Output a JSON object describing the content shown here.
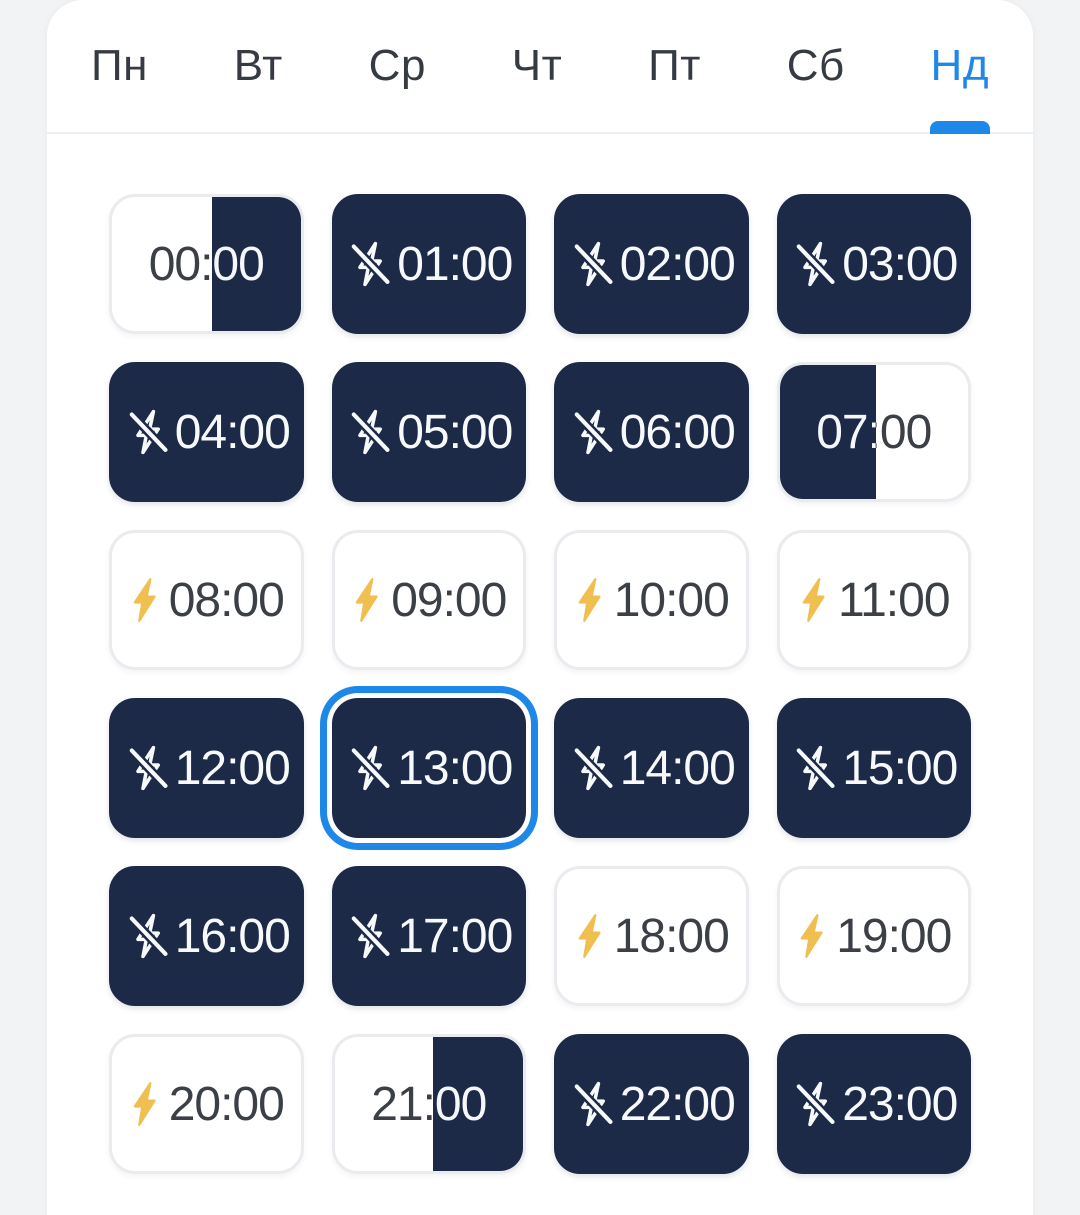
{
  "day_tabs": {
    "items": [
      {
        "label": "Пн",
        "active": false
      },
      {
        "label": "Вт",
        "active": false
      },
      {
        "label": "Ср",
        "active": false
      },
      {
        "label": "Чт",
        "active": false
      },
      {
        "label": "Пт",
        "active": false
      },
      {
        "label": "Сб",
        "active": false
      },
      {
        "label": "Нд",
        "active": true
      }
    ]
  },
  "schedule": {
    "selected_slot": "13:00",
    "slots": [
      {
        "time": "00:00",
        "state": "half",
        "dark_side": "right",
        "split_pct": 53,
        "icon": "none",
        "selected": false
      },
      {
        "time": "01:00",
        "state": "off",
        "icon": "flash-off",
        "selected": false
      },
      {
        "time": "02:00",
        "state": "off",
        "icon": "flash-off",
        "selected": false
      },
      {
        "time": "03:00",
        "state": "off",
        "icon": "flash-off",
        "selected": false
      },
      {
        "time": "04:00",
        "state": "off",
        "icon": "flash-off",
        "selected": false
      },
      {
        "time": "05:00",
        "state": "off",
        "icon": "flash-off",
        "selected": false
      },
      {
        "time": "06:00",
        "state": "off",
        "icon": "flash-off",
        "selected": false
      },
      {
        "time": "07:00",
        "state": "half",
        "dark_side": "left",
        "split_pct": 51,
        "icon": "none",
        "selected": false
      },
      {
        "time": "08:00",
        "state": "on",
        "icon": "flash",
        "selected": false
      },
      {
        "time": "09:00",
        "state": "on",
        "icon": "flash",
        "selected": false
      },
      {
        "time": "10:00",
        "state": "on",
        "icon": "flash",
        "selected": false
      },
      {
        "time": "11:00",
        "state": "on",
        "icon": "flash",
        "selected": false
      },
      {
        "time": "12:00",
        "state": "off",
        "icon": "flash-off",
        "selected": false
      },
      {
        "time": "13:00",
        "state": "off",
        "icon": "flash-off",
        "selected": true
      },
      {
        "time": "14:00",
        "state": "off",
        "icon": "flash-off",
        "selected": false
      },
      {
        "time": "15:00",
        "state": "off",
        "icon": "flash-off",
        "selected": false
      },
      {
        "time": "16:00",
        "state": "off",
        "icon": "flash-off",
        "selected": false
      },
      {
        "time": "17:00",
        "state": "off",
        "icon": "flash-off",
        "selected": false
      },
      {
        "time": "18:00",
        "state": "on",
        "icon": "flash",
        "selected": false
      },
      {
        "time": "19:00",
        "state": "on",
        "icon": "flash",
        "selected": false
      },
      {
        "time": "20:00",
        "state": "on",
        "icon": "flash",
        "selected": false
      },
      {
        "time": "21:00",
        "state": "half",
        "dark_side": "right",
        "split_pct": 52,
        "icon": "none",
        "selected": false
      },
      {
        "time": "22:00",
        "state": "off",
        "icon": "flash-off",
        "selected": false
      },
      {
        "time": "23:00",
        "state": "off",
        "icon": "flash-off",
        "selected": false
      }
    ]
  },
  "colors": {
    "accent_blue": "#1E88E8",
    "slot_dark_navy": "#1C2A48",
    "bolt_yellow": "#EFBF4F",
    "page_bg": "#F2F3F5",
    "card_bg": "#FFFFFF",
    "slot_border_gray": "#E9EBEE",
    "text_dark": "#3B3F46",
    "text_light": "#F5F7FA"
  }
}
